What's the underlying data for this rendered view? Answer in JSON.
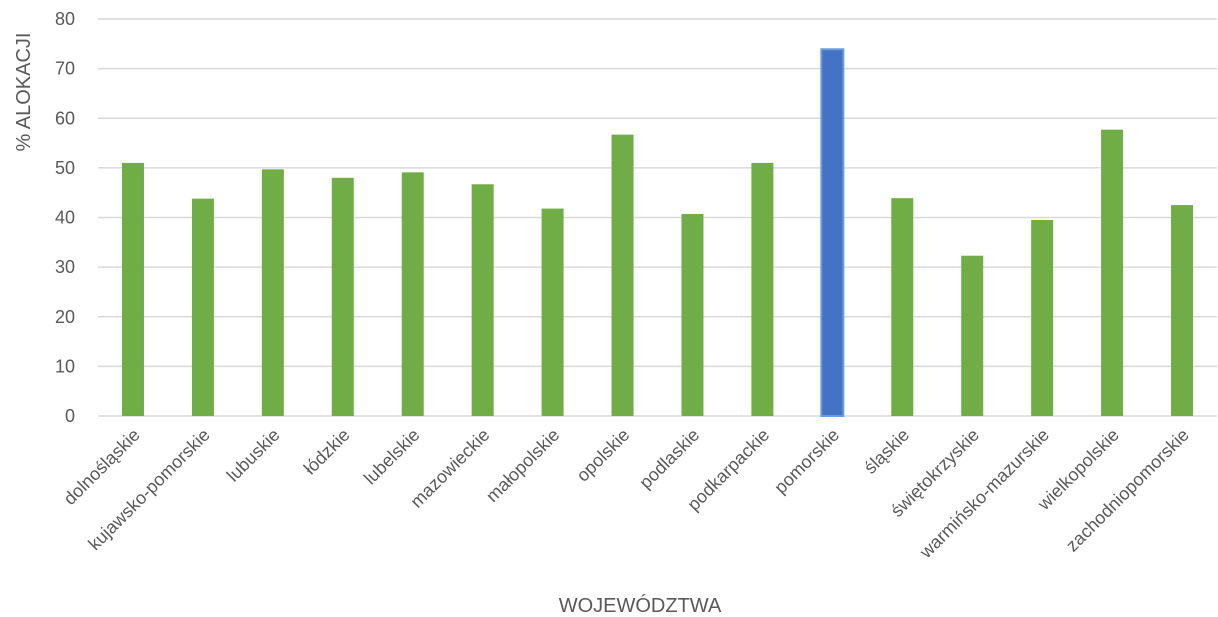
{
  "chart_data": {
    "type": "bar",
    "categories": [
      "dolnośląskie",
      "kujawsko-pomorskie",
      "lubuskie",
      "łódzkie",
      "lubelskie",
      "mazowieckie",
      "małopolskie",
      "opolskie",
      "podlaskie",
      "podkarpackie",
      "pomorskie",
      "śląskie",
      "świętokrzyskie",
      "warmińsko-mazurskie",
      "wielkopolskie",
      "zachodniopomorskie"
    ],
    "values": [
      51,
      43.8,
      49.7,
      48,
      49.1,
      46.7,
      41.8,
      56.7,
      40.7,
      51,
      73.9,
      43.9,
      32.3,
      39.5,
      57.7,
      42.5
    ],
    "highlight_index": 10,
    "colors": {
      "bar": "#70ad47",
      "highlight": "#4472c4",
      "highlight_border": "#6b9bd8",
      "grid": "#d9d9d9",
      "text": "#595959"
    },
    "xlabel": "WOJEWÓDZTWA",
    "ylabel": "% ALOKACJI",
    "ylim": [
      0,
      80
    ],
    "yticks": [
      "0",
      "10",
      "20",
      "30",
      "40",
      "50",
      "60",
      "70",
      "80"
    ],
    "grid": true
  }
}
